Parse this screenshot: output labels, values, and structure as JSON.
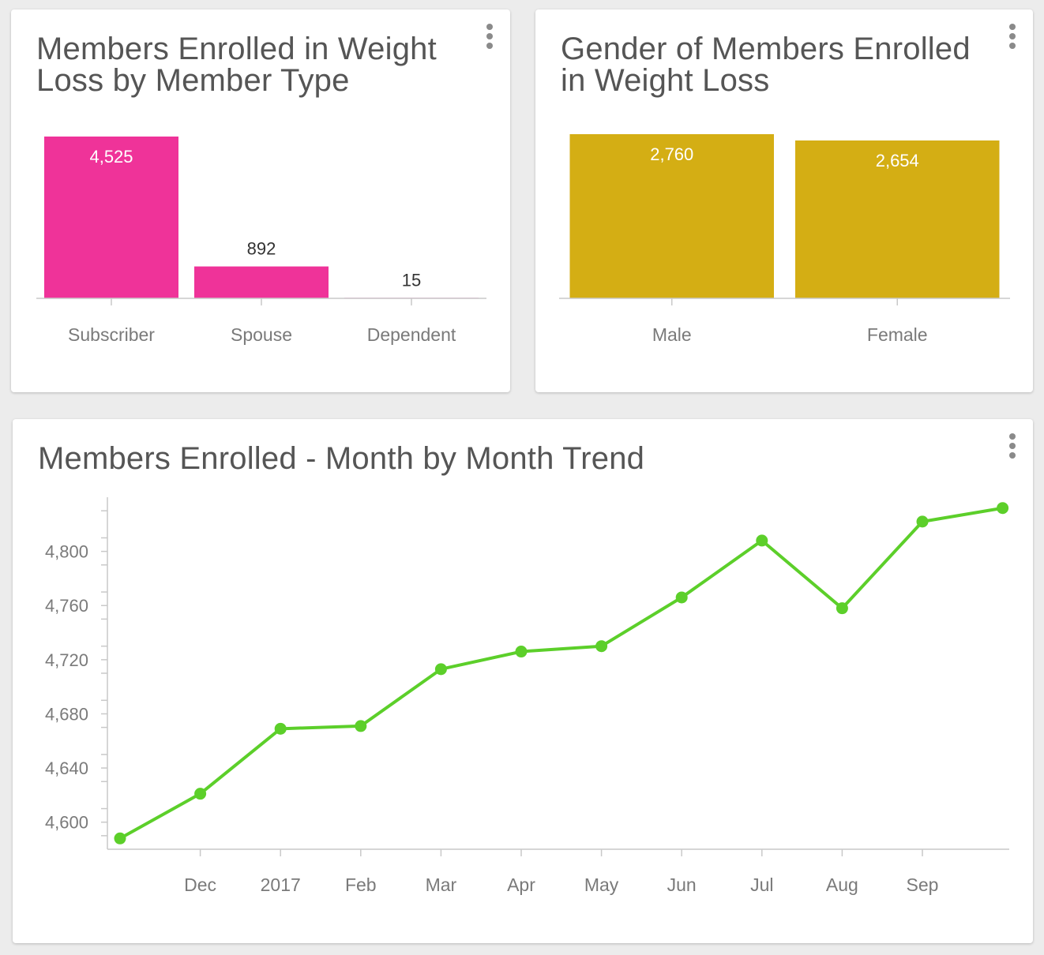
{
  "colors": {
    "bar_pink": "#ef3399",
    "bar_gold": "#d4ae14",
    "line_green": "#5ccf2a",
    "axis": "#c9c9c9",
    "tick_text": "#7a7a7a",
    "title_text": "#555555"
  },
  "cards": [
    {
      "title": "Members Enrolled in Weight Loss by Member Type",
      "menu_icon": "more-vertical-icon"
    },
    {
      "title": "Gender of Members Enrolled in Weight Loss",
      "menu_icon": "more-vertical-icon"
    },
    {
      "title": "Members Enrolled - Month by Month Trend",
      "menu_icon": "more-vertical-icon"
    }
  ],
  "chart_data": [
    {
      "type": "bar",
      "title": "Members Enrolled in Weight Loss by Member Type",
      "categories": [
        "Subscriber",
        "Spouse",
        "Dependent"
      ],
      "values": [
        4525,
        892,
        15
      ],
      "value_labels": [
        "4,525",
        "892",
        "15"
      ],
      "color": "#ef3399",
      "xlabel": "",
      "ylabel": "",
      "ylim": [
        0,
        4525
      ],
      "grid": false
    },
    {
      "type": "bar",
      "title": "Gender of Members Enrolled in Weight Loss",
      "categories": [
        "Male",
        "Female"
      ],
      "values": [
        2760,
        2654
      ],
      "value_labels": [
        "2,760",
        "2,654"
      ],
      "color": "#d4ae14",
      "xlabel": "",
      "ylabel": "",
      "ylim": [
        0,
        2760
      ],
      "grid": false
    },
    {
      "type": "line",
      "title": "Members Enrolled - Month by Month Trend",
      "x": [
        "2016-11",
        "2016-12",
        "2017-01",
        "2017-02",
        "2017-03",
        "2017-04",
        "2017-05",
        "2017-06",
        "2017-07",
        "2017-08",
        "2017-09",
        "2017-10"
      ],
      "x_tick_labels": [
        "",
        "Dec",
        "2017",
        "Feb",
        "Mar",
        "Apr",
        "May",
        "Jun",
        "Jul",
        "Aug",
        "Sep",
        ""
      ],
      "values": [
        4588,
        4621,
        4669,
        4671,
        4713,
        4726,
        4730,
        4766,
        4808,
        4758,
        4822,
        4832
      ],
      "y_ticks": [
        4600,
        4640,
        4680,
        4720,
        4760,
        4800
      ],
      "y_tick_labels": [
        "4,600",
        "4,640",
        "4,680",
        "4,720",
        "4,760",
        "4,800"
      ],
      "ylim": [
        4580,
        4840
      ],
      "color": "#5ccf2a",
      "xlabel": "",
      "ylabel": "",
      "grid": false
    }
  ]
}
